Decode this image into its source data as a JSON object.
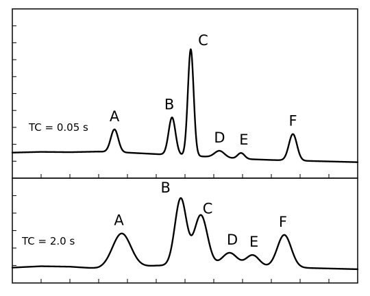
{
  "chart_data": [
    {
      "type": "line",
      "label": "TC = 0.05 s",
      "xlim": [
        0,
        12
      ],
      "ylim": [
        -1,
        10
      ],
      "baseline": [
        0.55,
        0.6,
        0.58,
        0.62,
        0.55,
        0.45,
        0.35,
        0.25,
        0.12,
        0.05,
        0.0,
        -0.05,
        -0.1
      ],
      "peaks": [
        {
          "name": "A",
          "x": 3.55,
          "height": 1.55,
          "width": 0.13
        },
        {
          "name": "B",
          "x": 5.55,
          "height": 2.55,
          "width": 0.12
        },
        {
          "name": "C",
          "x": 6.2,
          "height": 7.25,
          "width": 0.1
        },
        {
          "name": "D",
          "x": 7.2,
          "height": 0.45,
          "width": 0.17
        },
        {
          "name": "E",
          "x": 7.95,
          "height": 0.4,
          "width": 0.12
        },
        {
          "name": "F",
          "x": 9.75,
          "height": 1.8,
          "width": 0.14
        }
      ]
    },
    {
      "type": "line",
      "label": "TC = 2.0 s",
      "xlim": [
        0,
        12
      ],
      "ylim": [
        -1,
        10
      ],
      "baseline": [
        0.4,
        0.55,
        0.5,
        0.3,
        0.4,
        0.62,
        0.65,
        0.58,
        0.5,
        0.45,
        0.38,
        0.3,
        0.22
      ],
      "peaks": [
        {
          "name": "A",
          "x": 3.8,
          "height": 3.8,
          "width": 0.32
        },
        {
          "name": "B",
          "x": 5.85,
          "height": 7.4,
          "width": 0.2
        },
        {
          "name": "C",
          "x": 6.55,
          "height": 5.6,
          "width": 0.23
        },
        {
          "name": "D",
          "x": 7.55,
          "height": 1.5,
          "width": 0.26
        },
        {
          "name": "E",
          "x": 8.35,
          "height": 1.3,
          "width": 0.23
        },
        {
          "name": "F",
          "x": 9.45,
          "height": 3.6,
          "width": 0.24
        }
      ]
    }
  ]
}
